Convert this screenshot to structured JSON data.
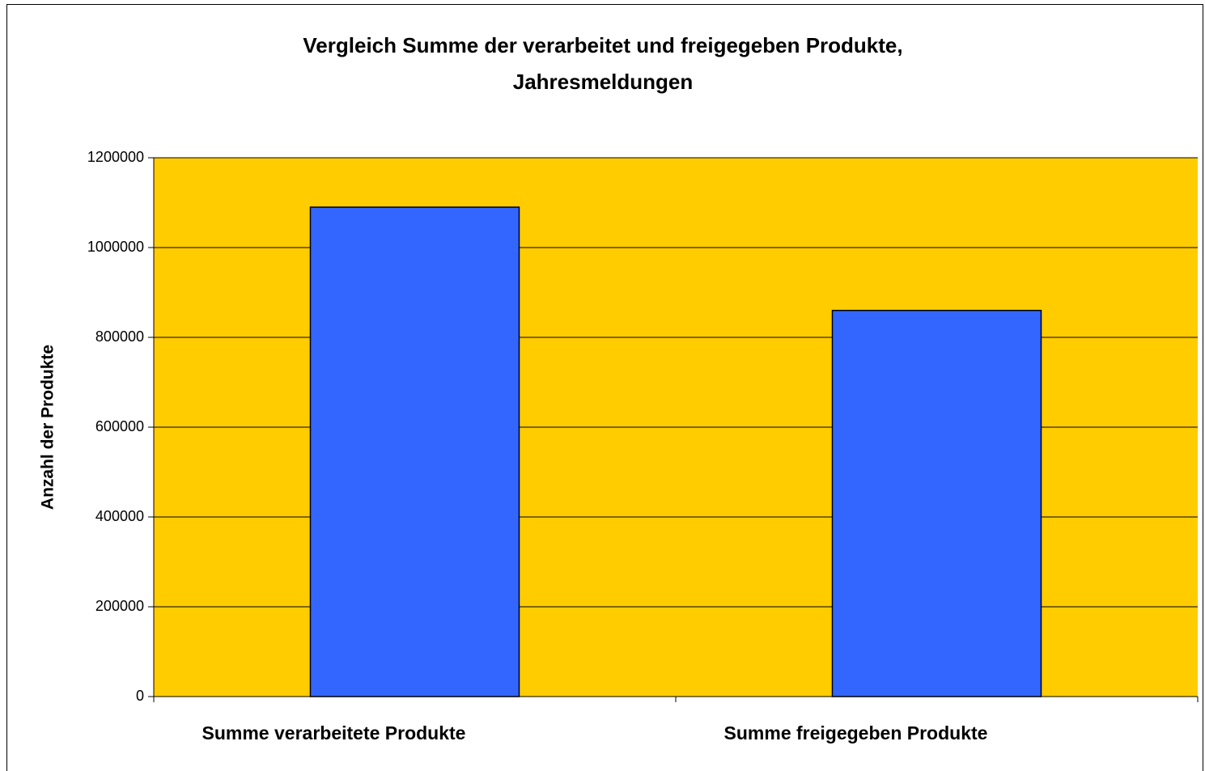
{
  "chart_data": {
    "type": "bar",
    "title": [
      "Vergleich Summe der verarbeitet und freigegeben Produkte,",
      "Jahresmeldungen"
    ],
    "y_label": "Anzahl der Produkte",
    "categories": [
      "Summe verarbeitete Produkte",
      "Summe freigegeben Produkte"
    ],
    "values": [
      1090000,
      860000
    ],
    "color": "#3366ff",
    "background": "#ffcc00",
    "ylim": [
      0,
      1200000
    ],
    "yticks": [
      0,
      200000,
      400000,
      600000,
      800000,
      1000000,
      1200000
    ],
    "grid": true
  }
}
